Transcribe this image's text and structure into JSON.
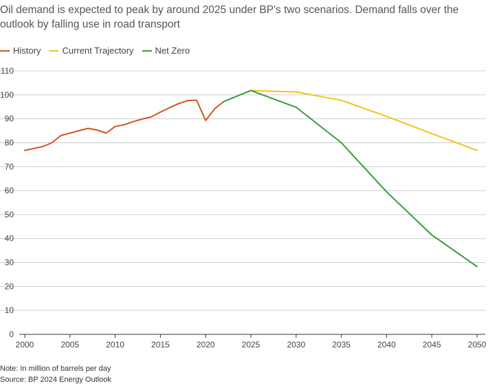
{
  "title": "Oil demand is expected to peak by around 2025 under BP's two scenarios. Demand falls over the outlook by falling use in road transport",
  "note": "Note: In million of barrels per day",
  "source": "Source: BP 2024 Energy Outlook",
  "colors": {
    "history": "#d4531c",
    "current": "#f0c419",
    "netzero": "#3a9a3c",
    "grid": "#cccccc",
    "axis": "#333333"
  },
  "chart_data": {
    "type": "line",
    "xlim": [
      2000,
      2050
    ],
    "ylim": [
      0,
      110
    ],
    "xticks": [
      2000,
      2005,
      2010,
      2015,
      2020,
      2025,
      2030,
      2035,
      2040,
      2045,
      2050
    ],
    "yticks": [
      0,
      10,
      20,
      30,
      40,
      50,
      60,
      70,
      80,
      90,
      100,
      110
    ],
    "legend": [
      "History",
      "Current Trajectory",
      "Net Zero"
    ],
    "legend_position": "top-left",
    "series": [
      {
        "name": "History",
        "color": "#d4531c",
        "points": [
          [
            2000,
            76.8
          ],
          [
            2001,
            77.6
          ],
          [
            2002,
            78.4
          ],
          [
            2003,
            80
          ],
          [
            2004,
            83
          ],
          [
            2005,
            84
          ],
          [
            2006,
            85
          ],
          [
            2007,
            86
          ],
          [
            2008,
            85.3
          ],
          [
            2009,
            84
          ],
          [
            2010,
            86.8
          ],
          [
            2011,
            87.5
          ],
          [
            2012,
            88.8
          ],
          [
            2013,
            89.9
          ],
          [
            2014,
            90.8
          ],
          [
            2015,
            92.8
          ],
          [
            2016,
            94.6
          ],
          [
            2017,
            96.3
          ],
          [
            2018,
            97.6
          ],
          [
            2019,
            97.8
          ],
          [
            2020,
            89.3
          ],
          [
            2021,
            94.2
          ],
          [
            2022,
            97.2
          ]
        ]
      },
      {
        "name": "Current Trajectory",
        "color": "#f0c419",
        "points": [
          [
            2025,
            101.8
          ],
          [
            2030,
            101.2
          ],
          [
            2035,
            97.7
          ],
          [
            2040,
            91
          ],
          [
            2045,
            83.8
          ],
          [
            2050,
            76.8
          ]
        ]
      },
      {
        "name": "Net Zero",
        "color": "#3a9a3c",
        "points": [
          [
            2022,
            97.2
          ],
          [
            2025,
            101.8
          ],
          [
            2030,
            94.8
          ],
          [
            2035,
            80
          ],
          [
            2040,
            59.5
          ],
          [
            2045,
            41.5
          ],
          [
            2050,
            28.3
          ]
        ]
      }
    ]
  }
}
